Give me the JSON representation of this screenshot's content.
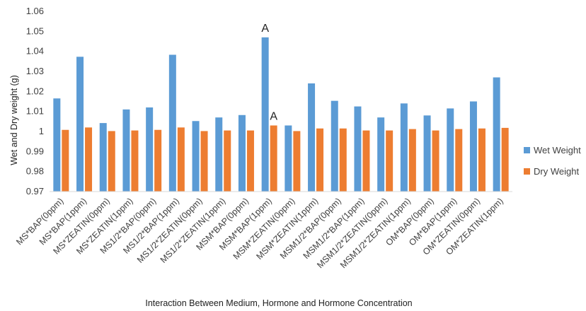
{
  "chart_data": {
    "type": "bar",
    "title": "",
    "xlabel": "Interaction Between Medium, Hormone and Hormone Concentration",
    "ylabel": "Wet and Dry weight (g)",
    "ylim": [
      0.97,
      1.06
    ],
    "yticks": [
      "0.97",
      "0.98",
      "0.99",
      "1",
      "1.01",
      "1.02",
      "1.03",
      "1.04",
      "1.05",
      "1.06"
    ],
    "grid": false,
    "legend_position": "right",
    "categories": [
      "MS*BAP(0ppm)",
      "MS*BAP(1ppm)",
      "MS*ZEATIN(0ppm)",
      "MS*ZEATIN(1ppm)",
      "MS1/2*BAP(0ppm)",
      "MS1/2*BAP(1ppm)",
      "MS1/2*ZEATIN(0ppm)",
      "MS1/2*ZEATIN(1ppm)",
      "MSM*BAP(0ppm)",
      "MSM*BAP(1ppm)",
      "MSM*ZEATIN(0ppm)",
      "MSM*ZEATIN(1ppm)",
      "MSM1/2*BAP(0ppm)",
      "MSM1/2*BAP(1ppm)",
      "MSM1/2*ZEATIN(0ppm)",
      "MSM1/2*ZEATIN(1ppm)",
      "OM*BAP(0ppm)",
      "OM*BAP(1ppm)",
      "OM*ZEATIN(0ppm)",
      "OM*ZEATIN(1ppm)"
    ],
    "series": [
      {
        "name": "Wet Weight",
        "color": "#5b9bd5",
        "values": [
          1.0165,
          1.0373,
          1.0042,
          1.011,
          1.012,
          1.0383,
          1.0052,
          1.007,
          1.0082,
          1.047,
          1.003,
          1.024,
          1.0153,
          1.0125,
          1.007,
          1.014,
          1.008,
          1.0115,
          1.015,
          1.027
        ]
      },
      {
        "name": "Dry Weight",
        "color": "#ed7d31",
        "values": [
          1.0008,
          1.002,
          1.0002,
          1.0005,
          1.0008,
          1.002,
          1.0002,
          1.0005,
          1.0005,
          1.003,
          1.0002,
          1.0015,
          1.0015,
          1.0005,
          1.0005,
          1.0012,
          1.0005,
          1.0012,
          1.0015,
          1.0018
        ]
      }
    ],
    "annotations": [
      {
        "text": "A",
        "category_index": 9,
        "series": 0
      },
      {
        "text": "A",
        "category_index": 9,
        "series": 1
      }
    ]
  }
}
